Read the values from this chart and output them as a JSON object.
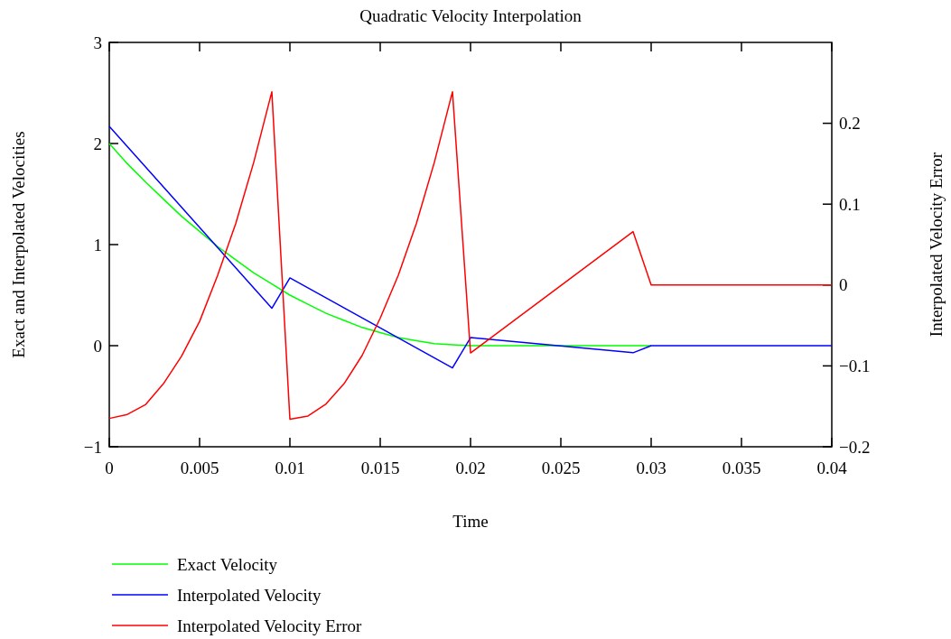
{
  "chart_data": {
    "type": "line",
    "title": "Quadratic Velocity Interpolation",
    "xlabel": "Time",
    "ylabel": "Exact and Interpolated Velocities",
    "y2label": "Interpolated Velocity Error",
    "xlim": [
      0,
      0.04
    ],
    "xticks": [
      0,
      0.005,
      0.01,
      0.015,
      0.02,
      0.025,
      0.03,
      0.035,
      0.04
    ],
    "ylim": [
      -1,
      3
    ],
    "yticks": [
      {
        "value": -1,
        "label": "−1"
      },
      0,
      1,
      2,
      3
    ],
    "y2lim": [
      -0.2,
      0.3
    ],
    "y2ticks": [
      {
        "value": -0.2,
        "label": "−0.2"
      },
      {
        "value": -0.1,
        "label": "−0.1"
      },
      0,
      0.1,
      0.2
    ],
    "grid": false,
    "legend": "bottom",
    "line_style": "solid",
    "marker": "none",
    "series": [
      {
        "name": "Exact Velocity",
        "color": "#00ff00",
        "x": [
          0,
          0.001,
          0.002,
          0.003,
          0.004,
          0.005,
          0.006,
          0.007,
          0.008,
          0.009,
          0.01,
          0.011,
          0.012,
          0.013,
          0.014,
          0.015,
          0.016,
          0.017,
          0.018,
          0.019,
          0.02,
          0.03
        ],
        "values": [
          2,
          1.8,
          1.62,
          1.45,
          1.28,
          1.13,
          0.98,
          0.85,
          0.72,
          0.61,
          0.5,
          0.41,
          0.32,
          0.25,
          0.18,
          0.13,
          0.08,
          0.05,
          0.02,
          0.01,
          0,
          0
        ]
      },
      {
        "name": "Interpolated Velocity",
        "color": "#0000ff",
        "x": [
          0,
          0.009,
          0.01,
          0.019,
          0.02,
          0.029,
          0.03,
          0.04
        ],
        "values": [
          2.17,
          0.37,
          0.67,
          -0.22,
          0.08,
          -0.07,
          0,
          0
        ]
      },
      {
        "name": "Interpolated Velocity Error",
        "color": "#ff0000",
        "axis": "y2",
        "x": [
          0,
          0.001,
          0.002,
          0.003,
          0.004,
          0.005,
          0.006,
          0.007,
          0.008,
          0.009,
          0.01,
          0.011,
          0.012,
          0.013,
          0.014,
          0.015,
          0.016,
          0.017,
          0.018,
          0.019,
          0.02,
          0.029,
          0.03,
          0.04
        ],
        "values": [
          -0.165,
          -0.16,
          -0.148,
          -0.122,
          -0.088,
          -0.045,
          0.012,
          0.076,
          0.152,
          0.239,
          -0.166,
          -0.162,
          -0.147,
          -0.122,
          -0.087,
          -0.041,
          0.012,
          0.076,
          0.152,
          0.239,
          -0.084,
          0.066,
          0,
          0
        ]
      }
    ]
  }
}
